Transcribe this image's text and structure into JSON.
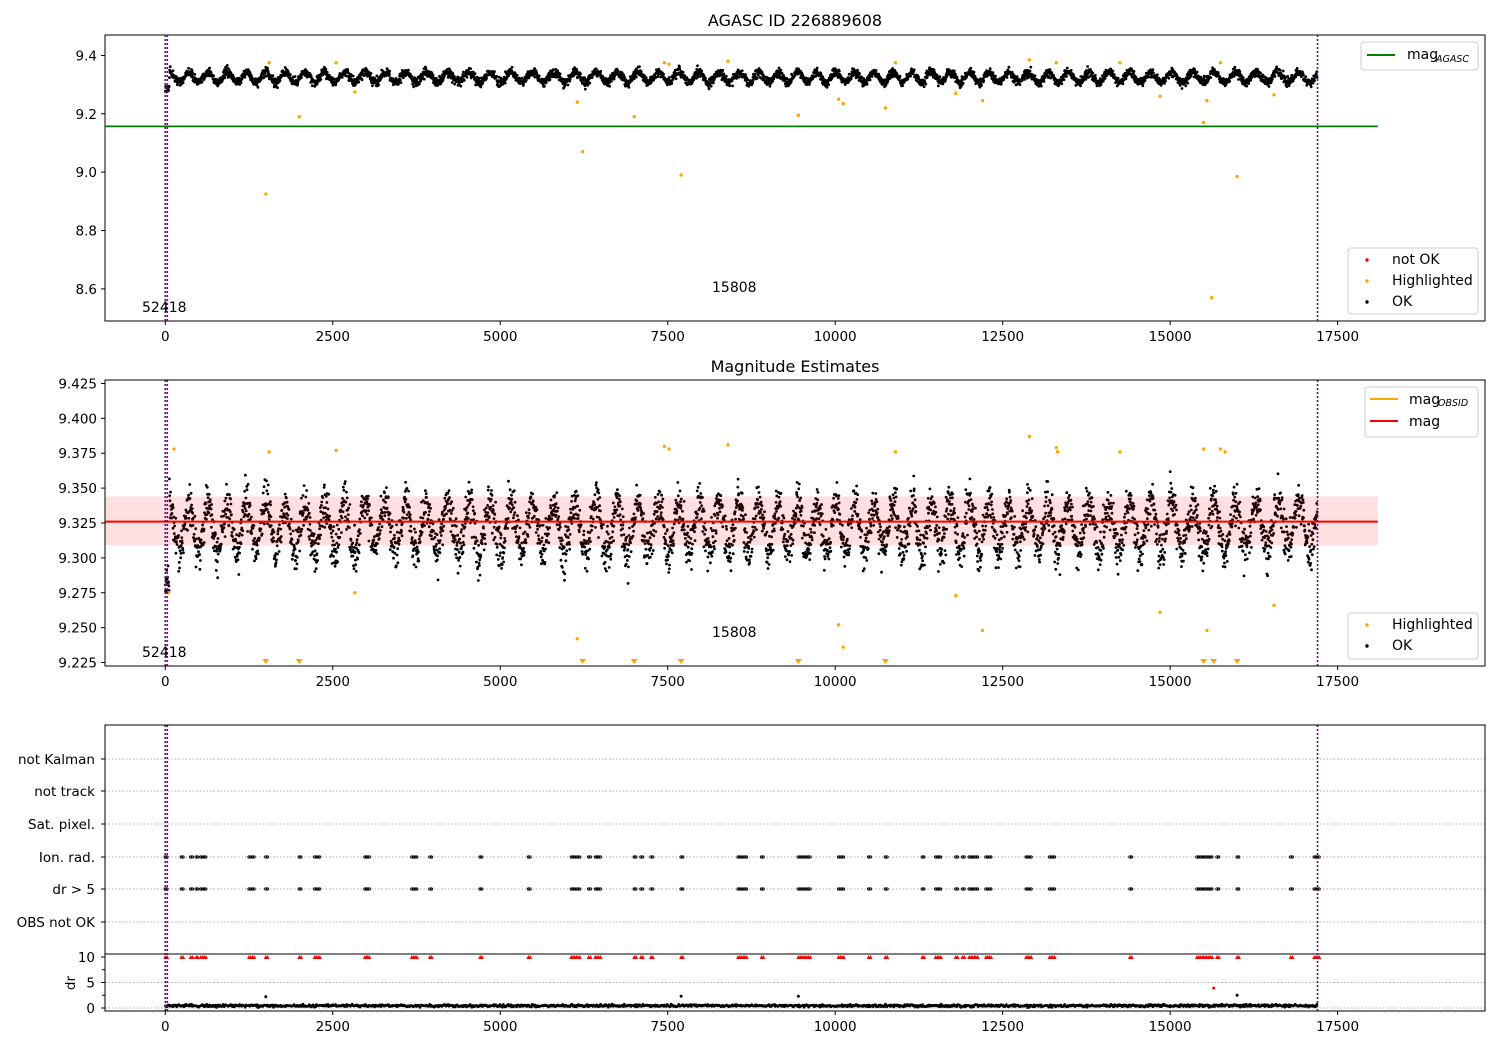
{
  "chart_data": [
    {
      "type": "scatter",
      "title": "AGASC ID 226889608",
      "xlim": [
        -900,
        19700
      ],
      "ylim": [
        8.49,
        9.47
      ],
      "xticks": [
        0,
        2500,
        5000,
        7500,
        10000,
        12500,
        15000,
        17500
      ],
      "yticks": [
        8.6,
        8.8,
        9.0,
        9.2,
        9.4
      ],
      "grid": false,
      "legend_upper": {
        "position": "top-right",
        "entries": [
          {
            "label": "mag",
            "sub": "AGASC",
            "color": "#008000",
            "kind": "line"
          }
        ]
      },
      "legend_lower": {
        "position": "bottom-right",
        "entries": [
          {
            "label": "not OK",
            "color": "#ff0000",
            "kind": "point"
          },
          {
            "label": "Highlighted",
            "color": "#ffa500",
            "kind": "point"
          },
          {
            "label": "OK",
            "color": "#000000",
            "kind": "point"
          }
        ]
      },
      "hlines": [
        {
          "y": 9.157,
          "x": [
            -900,
            18100
          ],
          "color": "#008000"
        }
      ],
      "vlines": [
        {
          "x": 0,
          "color": "#800080"
        },
        {
          "x": 30,
          "color": "#800080"
        },
        {
          "x": 17200,
          "color": "#800080"
        }
      ],
      "obsid_labels": [
        {
          "text": "52418",
          "x": 0,
          "y": 8.53
        },
        {
          "text": "15808",
          "x": 8600,
          "y": 8.6
        }
      ],
      "ok_series": {
        "x_range": [
          0,
          17200
        ],
        "center": 9.325,
        "amplitude": 0.022,
        "noise": 0.014,
        "period": 300,
        "start_low": 9.275
      },
      "highlighted_points": [
        {
          "x": 1500,
          "y": 8.925
        },
        {
          "x": 1550,
          "y": 9.375
        },
        {
          "x": 2000,
          "y": 9.19
        },
        {
          "x": 2550,
          "y": 9.375
        },
        {
          "x": 2830,
          "y": 9.275
        },
        {
          "x": 6150,
          "y": 9.24
        },
        {
          "x": 6230,
          "y": 9.07
        },
        {
          "x": 7000,
          "y": 9.19
        },
        {
          "x": 7450,
          "y": 9.375
        },
        {
          "x": 7520,
          "y": 9.37
        },
        {
          "x": 7700,
          "y": 8.99
        },
        {
          "x": 8400,
          "y": 9.38
        },
        {
          "x": 9450,
          "y": 9.195
        },
        {
          "x": 10050,
          "y": 9.25
        },
        {
          "x": 10120,
          "y": 9.235
        },
        {
          "x": 10750,
          "y": 9.22
        },
        {
          "x": 10900,
          "y": 9.375
        },
        {
          "x": 11800,
          "y": 9.27
        },
        {
          "x": 12200,
          "y": 9.245
        },
        {
          "x": 12900,
          "y": 9.385
        },
        {
          "x": 13300,
          "y": 9.375
        },
        {
          "x": 14250,
          "y": 9.375
        },
        {
          "x": 14850,
          "y": 9.26
        },
        {
          "x": 15500,
          "y": 9.17
        },
        {
          "x": 15550,
          "y": 9.245
        },
        {
          "x": 15620,
          "y": 8.57
        },
        {
          "x": 15750,
          "y": 9.375
        },
        {
          "x": 16000,
          "y": 8.985
        },
        {
          "x": 16550,
          "y": 9.265
        }
      ]
    },
    {
      "type": "scatter",
      "title": "Magnitude Estimates",
      "xlim": [
        -900,
        19700
      ],
      "ylim": [
        9.2225,
        9.4275
      ],
      "xticks": [
        0,
        2500,
        5000,
        7500,
        10000,
        12500,
        15000,
        17500
      ],
      "yticks": [
        9.225,
        9.25,
        9.275,
        9.3,
        9.325,
        9.35,
        9.375,
        9.4,
        9.425
      ],
      "grid": false,
      "legend_upper": {
        "position": "top-right",
        "entries": [
          {
            "label": "mag",
            "sub": "OBSID",
            "color": "#ffa500",
            "kind": "line"
          },
          {
            "label": "mag",
            "sub": "",
            "color": "#ff0000",
            "kind": "line"
          }
        ]
      },
      "legend_lower": {
        "position": "bottom-right",
        "entries": [
          {
            "label": "Highlighted",
            "color": "#ffa500",
            "kind": "point"
          },
          {
            "label": "OK",
            "color": "#000000",
            "kind": "point"
          }
        ]
      },
      "mean": 9.326,
      "band": [
        9.309,
        9.344
      ],
      "band_x": [
        -900,
        18100
      ],
      "vlines": [
        {
          "x": 0,
          "color": "#800080"
        },
        {
          "x": 30,
          "color": "#800080"
        },
        {
          "x": 17200,
          "color": "#800080"
        }
      ],
      "obsid_labels": [
        {
          "text": "52418",
          "x": 0,
          "y": 9.229
        },
        {
          "text": "15808",
          "x": 8600,
          "y": 9.245
        }
      ],
      "ok_series": {
        "x_range": [
          0,
          17200
        ],
        "center": 9.322,
        "amplitude": 0.022,
        "noise": 0.014,
        "period": 300,
        "start_low": 9.275
      },
      "highlighted_points": [
        {
          "x": 50,
          "y": 9.275
        },
        {
          "x": 130,
          "y": 9.378
        },
        {
          "x": 1550,
          "y": 9.376
        },
        {
          "x": 2550,
          "y": 9.377
        },
        {
          "x": 2830,
          "y": 9.275
        },
        {
          "x": 6150,
          "y": 9.242
        },
        {
          "x": 7450,
          "y": 9.38
        },
        {
          "x": 7520,
          "y": 9.378
        },
        {
          "x": 8400,
          "y": 9.381
        },
        {
          "x": 10050,
          "y": 9.252
        },
        {
          "x": 10120,
          "y": 9.236
        },
        {
          "x": 10900,
          "y": 9.376
        },
        {
          "x": 11800,
          "y": 9.273
        },
        {
          "x": 12200,
          "y": 9.248
        },
        {
          "x": 12900,
          "y": 9.387
        },
        {
          "x": 13300,
          "y": 9.379
        },
        {
          "x": 13320,
          "y": 9.376
        },
        {
          "x": 14250,
          "y": 9.376
        },
        {
          "x": 14850,
          "y": 9.261
        },
        {
          "x": 15500,
          "y": 9.378
        },
        {
          "x": 15550,
          "y": 9.248
        },
        {
          "x": 15750,
          "y": 9.378
        },
        {
          "x": 15820,
          "y": 9.376
        },
        {
          "x": 16550,
          "y": 9.266
        }
      ],
      "offscale_markers_x": [
        1500,
        2000,
        6230,
        7000,
        7700,
        9450,
        10750,
        15500,
        15650,
        16000
      ]
    },
    {
      "type": "scatter",
      "title": "",
      "xlim": [
        -900,
        19700
      ],
      "xticks": [
        0,
        2500,
        5000,
        7500,
        10000,
        12500,
        15000,
        17500
      ],
      "flag_rows": [
        "not Kalman",
        "not track",
        "Sat. pixel.",
        "Ion. rad.",
        "dr > 5",
        "OBS not OK"
      ],
      "flag_events_x": [
        0,
        240,
        380,
        460,
        530,
        580,
        1250,
        1300,
        1500,
        2000,
        2230,
        2280,
        2980,
        3020,
        3680,
        3730,
        3950,
        4700,
        5420,
        6060,
        6110,
        6160,
        6320,
        6420,
        6470,
        7000,
        7100,
        7250,
        7700,
        8550,
        8600,
        8650,
        8900,
        9450,
        9500,
        9550,
        9600,
        10050,
        10100,
        10500,
        10750,
        11300,
        11500,
        11550,
        11800,
        11900,
        12000,
        12050,
        12100,
        12250,
        12300,
        12850,
        12900,
        13200,
        13250,
        14400,
        15400,
        15450,
        15500,
        15550,
        15600,
        15700,
        16000,
        16800,
        17150,
        17200
      ],
      "dr_subplot": {
        "ylabel": "dr",
        "yticks": [
          0,
          5,
          10
        ],
        "ylim": [
          -1,
          10.8
        ],
        "limit_marker_y": 10,
        "ok_baseline": {
          "mean": 0.45,
          "noise": 0.25
        },
        "outliers": [
          {
            "x": 1500,
            "y": 2.2,
            "color": "#000000"
          },
          {
            "x": 7700,
            "y": 2.3,
            "color": "#000000"
          },
          {
            "x": 9450,
            "y": 2.3,
            "color": "#000000"
          },
          {
            "x": 15650,
            "y": 3.9,
            "color": "#ff0000"
          },
          {
            "x": 16000,
            "y": 2.5,
            "color": "#000000"
          }
        ]
      }
    }
  ]
}
